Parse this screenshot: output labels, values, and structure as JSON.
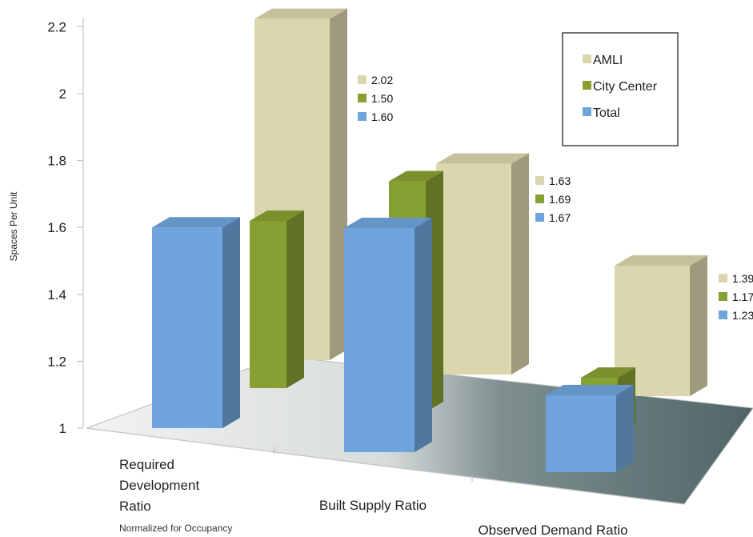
{
  "chart_data": {
    "type": "bar",
    "ylabel": "Spaces Per Unit",
    "ylim": [
      1,
      2.2
    ],
    "yticks": [
      "1",
      "1.2",
      "1.4",
      "1.6",
      "1.8",
      "2",
      "2.2"
    ],
    "categories": [
      {
        "label": [
          "Required",
          "Development",
          "Ratio"
        ],
        "sublabel": "Normalized for Occupancy"
      },
      {
        "label": [
          "Built Supply Ratio"
        ],
        "sublabel": ""
      },
      {
        "label": [
          "Observed Demand Ratio"
        ],
        "sublabel": ""
      }
    ],
    "series": [
      {
        "name": "AMLI",
        "color": "#dcd6ae",
        "values": [
          2.02,
          1.63,
          1.39
        ],
        "labels": [
          "2.02",
          "1.63",
          "1.39"
        ]
      },
      {
        "name": "City Center",
        "color": "#86a032",
        "values": [
          1.5,
          1.69,
          1.17
        ],
        "labels": [
          "1.50",
          "1.69",
          "1.17"
        ]
      },
      {
        "name": "Total",
        "color": "#6fa5dc",
        "values": [
          1.6,
          1.67,
          1.23
        ],
        "labels": [
          "1.60",
          "1.67",
          "1.23"
        ]
      }
    ],
    "legend_position": "top-right",
    "style": "3d-clustered-column"
  }
}
